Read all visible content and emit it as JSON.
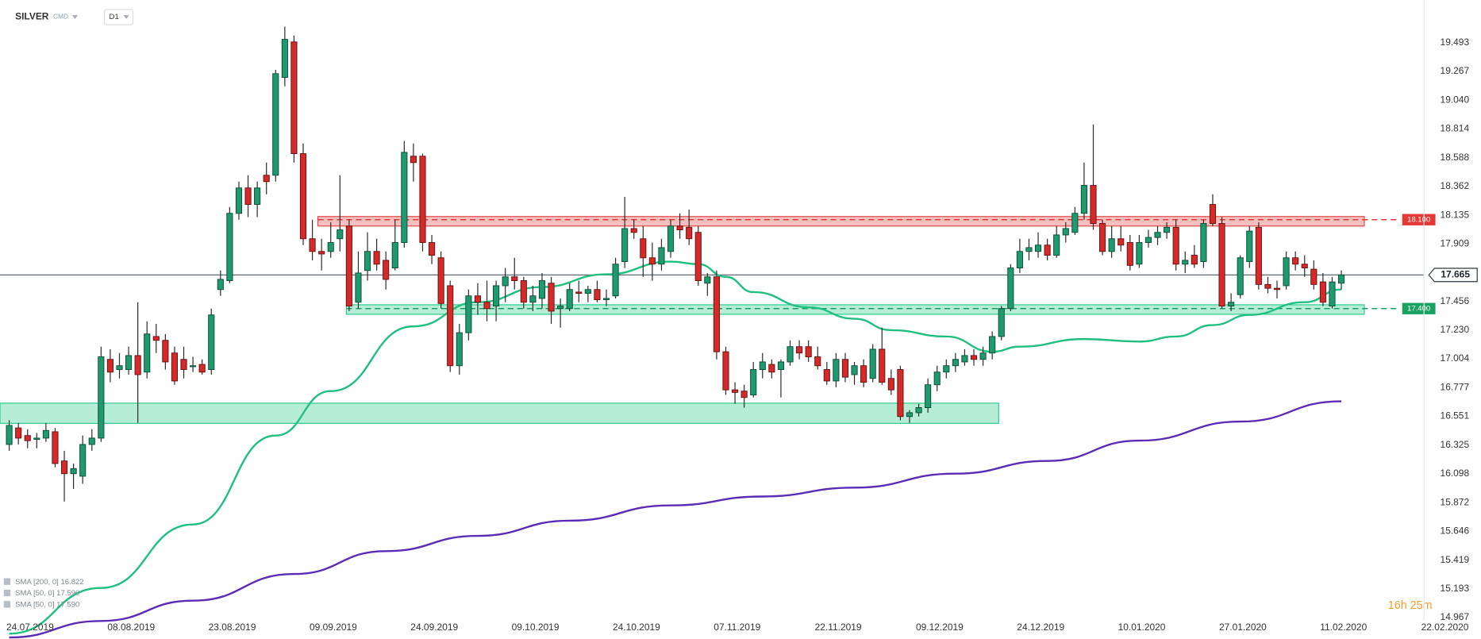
{
  "header": {
    "symbol": "SILVER",
    "market": "CMD",
    "timeframe": "D1"
  },
  "chart_data": {
    "type": "candlestick",
    "up_color": "#1f9a6f",
    "down_color": "#d42a2a",
    "xlim": [
      -1,
      154
    ],
    "xticks": [
      {
        "value": 0,
        "label": "24.07.2019"
      },
      {
        "value": 11,
        "label": "08.08.2019"
      },
      {
        "value": 22,
        "label": "23.08.2019"
      },
      {
        "value": 33,
        "label": "09.09.2019"
      },
      {
        "value": 44,
        "label": "24.09.2019"
      },
      {
        "value": 55,
        "label": "09.10.2019"
      },
      {
        "value": 66,
        "label": "24.10.2019"
      },
      {
        "value": 77,
        "label": "07.11.2019"
      },
      {
        "value": 88,
        "label": "22.11.2019"
      },
      {
        "value": 99,
        "label": "09.12.2019"
      },
      {
        "value": 110,
        "label": "24.12.2019"
      },
      {
        "value": 121,
        "label": "10.01.2020"
      },
      {
        "value": 132,
        "label": "27.01.2020"
      },
      {
        "value": 143,
        "label": "11.02.2020"
      },
      {
        "value": 154,
        "label": "22.02.2020"
      }
    ],
    "ylim": [
      14.94,
      19.83
    ],
    "yticks": [
      19.493,
      19.267,
      {
        "value": 19.04,
        "label": "19.040"
      },
      18.814,
      18.588,
      18.362,
      18.135,
      17.909,
      17.456,
      {
        "value": 17.23,
        "label": "17.230"
      },
      17.004,
      16.777,
      16.551,
      16.325,
      16.098,
      15.872,
      15.646,
      15.419,
      15.193,
      14.967
    ],
    "grid": false,
    "last_price": 17.665,
    "ohlc": [
      [
        16.33,
        16.52,
        16.28,
        16.48
      ],
      [
        16.46,
        16.5,
        16.33,
        16.38
      ],
      [
        16.4,
        16.45,
        16.3,
        16.36
      ],
      [
        16.37,
        16.42,
        16.3,
        16.38
      ],
      [
        16.38,
        16.5,
        16.35,
        16.44
      ],
      [
        16.43,
        16.46,
        16.15,
        16.18
      ],
      [
        16.2,
        16.28,
        15.88,
        16.1
      ],
      [
        16.1,
        16.18,
        15.98,
        16.14
      ],
      [
        16.08,
        16.4,
        16.02,
        16.33
      ],
      [
        16.33,
        16.45,
        16.28,
        16.38
      ],
      [
        16.38,
        17.1,
        16.35,
        17.02
      ],
      [
        17.0,
        17.08,
        16.82,
        16.9
      ],
      [
        16.92,
        17.05,
        16.85,
        16.95
      ],
      [
        16.92,
        17.1,
        16.88,
        17.03
      ],
      [
        17.03,
        17.45,
        16.5,
        16.88
      ],
      [
        16.9,
        17.3,
        16.85,
        17.2
      ],
      [
        17.18,
        17.28,
        17.05,
        17.15
      ],
      [
        17.15,
        17.2,
        16.92,
        16.98
      ],
      [
        17.05,
        17.1,
        16.8,
        16.83
      ],
      [
        17.0,
        17.1,
        16.85,
        16.92
      ],
      [
        16.95,
        17.02,
        16.9,
        16.95
      ],
      [
        16.96,
        17.0,
        16.88,
        16.9
      ],
      [
        16.92,
        17.4,
        16.88,
        17.35
      ],
      [
        17.55,
        17.7,
        17.5,
        17.63
      ],
      [
        17.62,
        18.2,
        17.6,
        18.15
      ],
      [
        18.15,
        18.4,
        18.1,
        18.35
      ],
      [
        18.35,
        18.45,
        18.12,
        18.22
      ],
      [
        18.22,
        18.4,
        18.12,
        18.35
      ],
      [
        18.45,
        18.55,
        18.3,
        18.4
      ],
      [
        18.45,
        19.28,
        18.4,
        19.25
      ],
      [
        19.22,
        19.62,
        19.15,
        19.52
      ],
      [
        19.5,
        19.55,
        18.55,
        18.62
      ],
      [
        18.62,
        18.7,
        17.9,
        17.95
      ],
      [
        17.95,
        18.1,
        17.78,
        17.85
      ],
      [
        17.85,
        17.95,
        17.7,
        17.83
      ],
      [
        17.85,
        18.08,
        17.8,
        17.92
      ],
      [
        17.95,
        18.45,
        17.85,
        18.02
      ],
      [
        18.05,
        18.1,
        17.38,
        17.42
      ],
      [
        17.45,
        17.85,
        17.4,
        17.68
      ],
      [
        17.7,
        18.0,
        17.62,
        17.85
      ],
      [
        17.85,
        17.95,
        17.7,
        17.75
      ],
      [
        17.78,
        17.85,
        17.55,
        17.63
      ],
      [
        17.72,
        18.1,
        17.7,
        17.92
      ],
      [
        17.92,
        18.72,
        17.88,
        18.63
      ],
      [
        18.6,
        18.7,
        18.4,
        18.55
      ],
      [
        18.6,
        18.62,
        17.85,
        17.92
      ],
      [
        17.92,
        17.98,
        17.75,
        17.82
      ],
      [
        17.8,
        17.85,
        17.4,
        17.44
      ],
      [
        17.58,
        17.62,
        16.9,
        16.95
      ],
      [
        16.95,
        17.28,
        16.88,
        17.21
      ],
      [
        17.21,
        17.55,
        17.15,
        17.5
      ],
      [
        17.5,
        17.6,
        17.35,
        17.45
      ],
      [
        17.45,
        17.62,
        17.3,
        17.4
      ],
      [
        17.42,
        17.62,
        17.3,
        17.58
      ],
      [
        17.58,
        17.72,
        17.45,
        17.65
      ],
      [
        17.65,
        17.8,
        17.55,
        17.62
      ],
      [
        17.62,
        17.65,
        17.4,
        17.45
      ],
      [
        17.45,
        17.58,
        17.38,
        17.5
      ],
      [
        17.48,
        17.68,
        17.4,
        17.62
      ],
      [
        17.6,
        17.65,
        17.28,
        17.38
      ],
      [
        17.4,
        17.48,
        17.25,
        17.42
      ],
      [
        17.4,
        17.6,
        17.38,
        17.55
      ],
      [
        17.53,
        17.62,
        17.45,
        17.52
      ],
      [
        17.52,
        17.58,
        17.45,
        17.55
      ],
      [
        17.55,
        17.62,
        17.45,
        17.47
      ],
      [
        17.47,
        17.55,
        17.42,
        17.48
      ],
      [
        17.5,
        17.8,
        17.48,
        17.75
      ],
      [
        17.77,
        18.28,
        17.72,
        18.03
      ],
      [
        18.03,
        18.1,
        17.95,
        18.0
      ],
      [
        17.95,
        18.05,
        17.65,
        17.8
      ],
      [
        17.8,
        17.92,
        17.62,
        17.75
      ],
      [
        17.75,
        17.95,
        17.7,
        17.88
      ],
      [
        17.85,
        18.1,
        17.8,
        18.05
      ],
      [
        18.05,
        18.15,
        17.95,
        18.02
      ],
      [
        18.04,
        18.18,
        17.9,
        17.95
      ],
      [
        18.0,
        18.05,
        17.58,
        17.62
      ],
      [
        17.6,
        17.68,
        17.5,
        17.65
      ],
      [
        17.65,
        17.7,
        17.0,
        17.06
      ],
      [
        17.06,
        17.1,
        16.72,
        16.76
      ],
      [
        16.76,
        16.82,
        16.65,
        16.74
      ],
      [
        16.75,
        16.8,
        16.62,
        16.7
      ],
      [
        16.72,
        16.98,
        16.7,
        16.92
      ],
      [
        16.92,
        17.05,
        16.85,
        16.98
      ],
      [
        16.96,
        17.0,
        16.85,
        16.9
      ],
      [
        16.92,
        17.0,
        16.7,
        16.98
      ],
      [
        16.98,
        17.15,
        16.95,
        17.1
      ],
      [
        17.1,
        17.15,
        17.0,
        17.05
      ],
      [
        17.1,
        17.15,
        16.98,
        17.02
      ],
      [
        17.02,
        17.1,
        16.92,
        16.95
      ],
      [
        16.92,
        16.98,
        16.8,
        16.83
      ],
      [
        16.83,
        17.05,
        16.78,
        17.0
      ],
      [
        17.0,
        17.05,
        16.82,
        16.86
      ],
      [
        16.88,
        16.98,
        16.8,
        16.95
      ],
      [
        16.95,
        17.0,
        16.78,
        16.82
      ],
      [
        16.85,
        17.12,
        16.82,
        17.08
      ],
      [
        17.08,
        17.25,
        16.8,
        16.82
      ],
      [
        16.85,
        16.92,
        16.72,
        16.76
      ],
      [
        16.92,
        16.95,
        16.52,
        16.55
      ],
      [
        16.55,
        16.6,
        16.5,
        16.58
      ],
      [
        16.58,
        16.65,
        16.55,
        16.62
      ],
      [
        16.62,
        16.85,
        16.58,
        16.8
      ],
      [
        16.8,
        16.95,
        16.75,
        16.9
      ],
      [
        16.9,
        17.0,
        16.85,
        16.95
      ],
      [
        16.95,
        17.05,
        16.9,
        17.0
      ],
      [
        16.98,
        17.08,
        16.95,
        17.03
      ],
      [
        17.03,
        17.08,
        16.95,
        17.0
      ],
      [
        17.0,
        17.1,
        16.95,
        17.05
      ],
      [
        17.05,
        17.22,
        17.0,
        17.18
      ],
      [
        17.18,
        17.42,
        17.15,
        17.4
      ],
      [
        17.4,
        17.75,
        17.38,
        17.72
      ],
      [
        17.72,
        17.95,
        17.68,
        17.85
      ],
      [
        17.85,
        17.95,
        17.78,
        17.88
      ],
      [
        17.85,
        18.0,
        17.8,
        17.9
      ],
      [
        17.9,
        17.95,
        17.78,
        17.82
      ],
      [
        17.82,
        18.05,
        17.8,
        17.98
      ],
      [
        17.98,
        18.08,
        17.92,
        18.03
      ],
      [
        18.0,
        18.2,
        17.98,
        18.15
      ],
      [
        18.15,
        18.55,
        18.1,
        18.37
      ],
      [
        18.37,
        18.85,
        18.02,
        18.07
      ],
      [
        18.07,
        18.1,
        17.82,
        17.85
      ],
      [
        17.85,
        18.05,
        17.8,
        17.95
      ],
      [
        17.95,
        18.05,
        17.85,
        17.9
      ],
      [
        17.92,
        17.98,
        17.7,
        17.74
      ],
      [
        17.75,
        17.98,
        17.72,
        17.92
      ],
      [
        17.92,
        18.02,
        17.88,
        17.96
      ],
      [
        17.96,
        18.05,
        17.9,
        18.0
      ],
      [
        18.0,
        18.08,
        17.95,
        18.04
      ],
      [
        18.04,
        18.1,
        17.7,
        17.75
      ],
      [
        17.75,
        17.85,
        17.68,
        17.78
      ],
      [
        17.82,
        17.9,
        17.72,
        17.75
      ],
      [
        17.77,
        18.1,
        17.72,
        18.07
      ],
      [
        18.22,
        18.3,
        18.05,
        18.07
      ],
      [
        18.07,
        18.12,
        17.4,
        17.42
      ],
      [
        17.42,
        17.52,
        17.38,
        17.45
      ],
      [
        17.51,
        17.82,
        17.48,
        17.8
      ],
      [
        17.77,
        18.05,
        17.72,
        18.01
      ],
      [
        18.04,
        18.08,
        17.55,
        17.59
      ],
      [
        17.59,
        17.65,
        17.52,
        17.56
      ],
      [
        17.56,
        17.62,
        17.48,
        17.55
      ],
      [
        17.58,
        17.85,
        17.55,
        17.8
      ],
      [
        17.8,
        17.85,
        17.7,
        17.75
      ],
      [
        17.75,
        17.82,
        17.65,
        17.72
      ],
      [
        17.71,
        17.78,
        17.55,
        17.59
      ],
      [
        17.61,
        17.68,
        17.42,
        17.45
      ],
      [
        17.42,
        17.65,
        17.4,
        17.61
      ],
      [
        17.6,
        17.7,
        17.55,
        17.665
      ]
    ],
    "zones": [
      {
        "color": "#e04848",
        "label_color": "#e53935",
        "y": [
          18.05,
          18.125
        ],
        "x": [
          33.6,
          147.5
        ],
        "level": {
          "value": 18.1,
          "label": "18.100"
        }
      },
      {
        "color": "#2ecc8a",
        "label_color": "#1aa260",
        "y": [
          17.355,
          17.43
        ],
        "x": [
          36.7,
          147.5
        ],
        "level": {
          "value": 17.4,
          "label": "17.400"
        }
      },
      {
        "color": "#2ecc8a",
        "y": [
          16.496,
          16.655
        ],
        "x": [
          -1,
          107.7
        ]
      }
    ],
    "series": [
      {
        "color": "#1fbf7f",
        "x": [
          0,
          10,
          20,
          29,
          35,
          44,
          51,
          58,
          65,
          72,
          75,
          78,
          81,
          87,
          92,
          96,
          102,
          107,
          110,
          117,
          123,
          127,
          131,
          135,
          141,
          145
        ],
        "values": [
          14.84,
          15.2,
          15.7,
          16.4,
          16.75,
          17.26,
          17.45,
          17.57,
          17.67,
          17.77,
          17.75,
          17.65,
          17.53,
          17.41,
          17.32,
          17.23,
          17.18,
          17.06,
          17.1,
          17.16,
          17.14,
          17.18,
          17.27,
          17.35,
          17.45,
          17.55
        ]
      },
      {
        "color": "#5b2bb5",
        "x": [
          0,
          10,
          20,
          31,
          41,
          51,
          61,
          72,
          82,
          92,
          103,
          113,
          123,
          134,
          145
        ],
        "values": [
          14.81,
          14.94,
          15.1,
          15.31,
          15.49,
          15.61,
          15.73,
          15.85,
          15.92,
          15.99,
          16.1,
          16.2,
          16.36,
          16.51,
          16.67
        ]
      }
    ],
    "legend": [
      "SMA [200, 0] 16.822",
      "SMA [50, 0] 17.590",
      "SMA [50, 0] 17.590"
    ]
  },
  "timer": "16h 25m"
}
